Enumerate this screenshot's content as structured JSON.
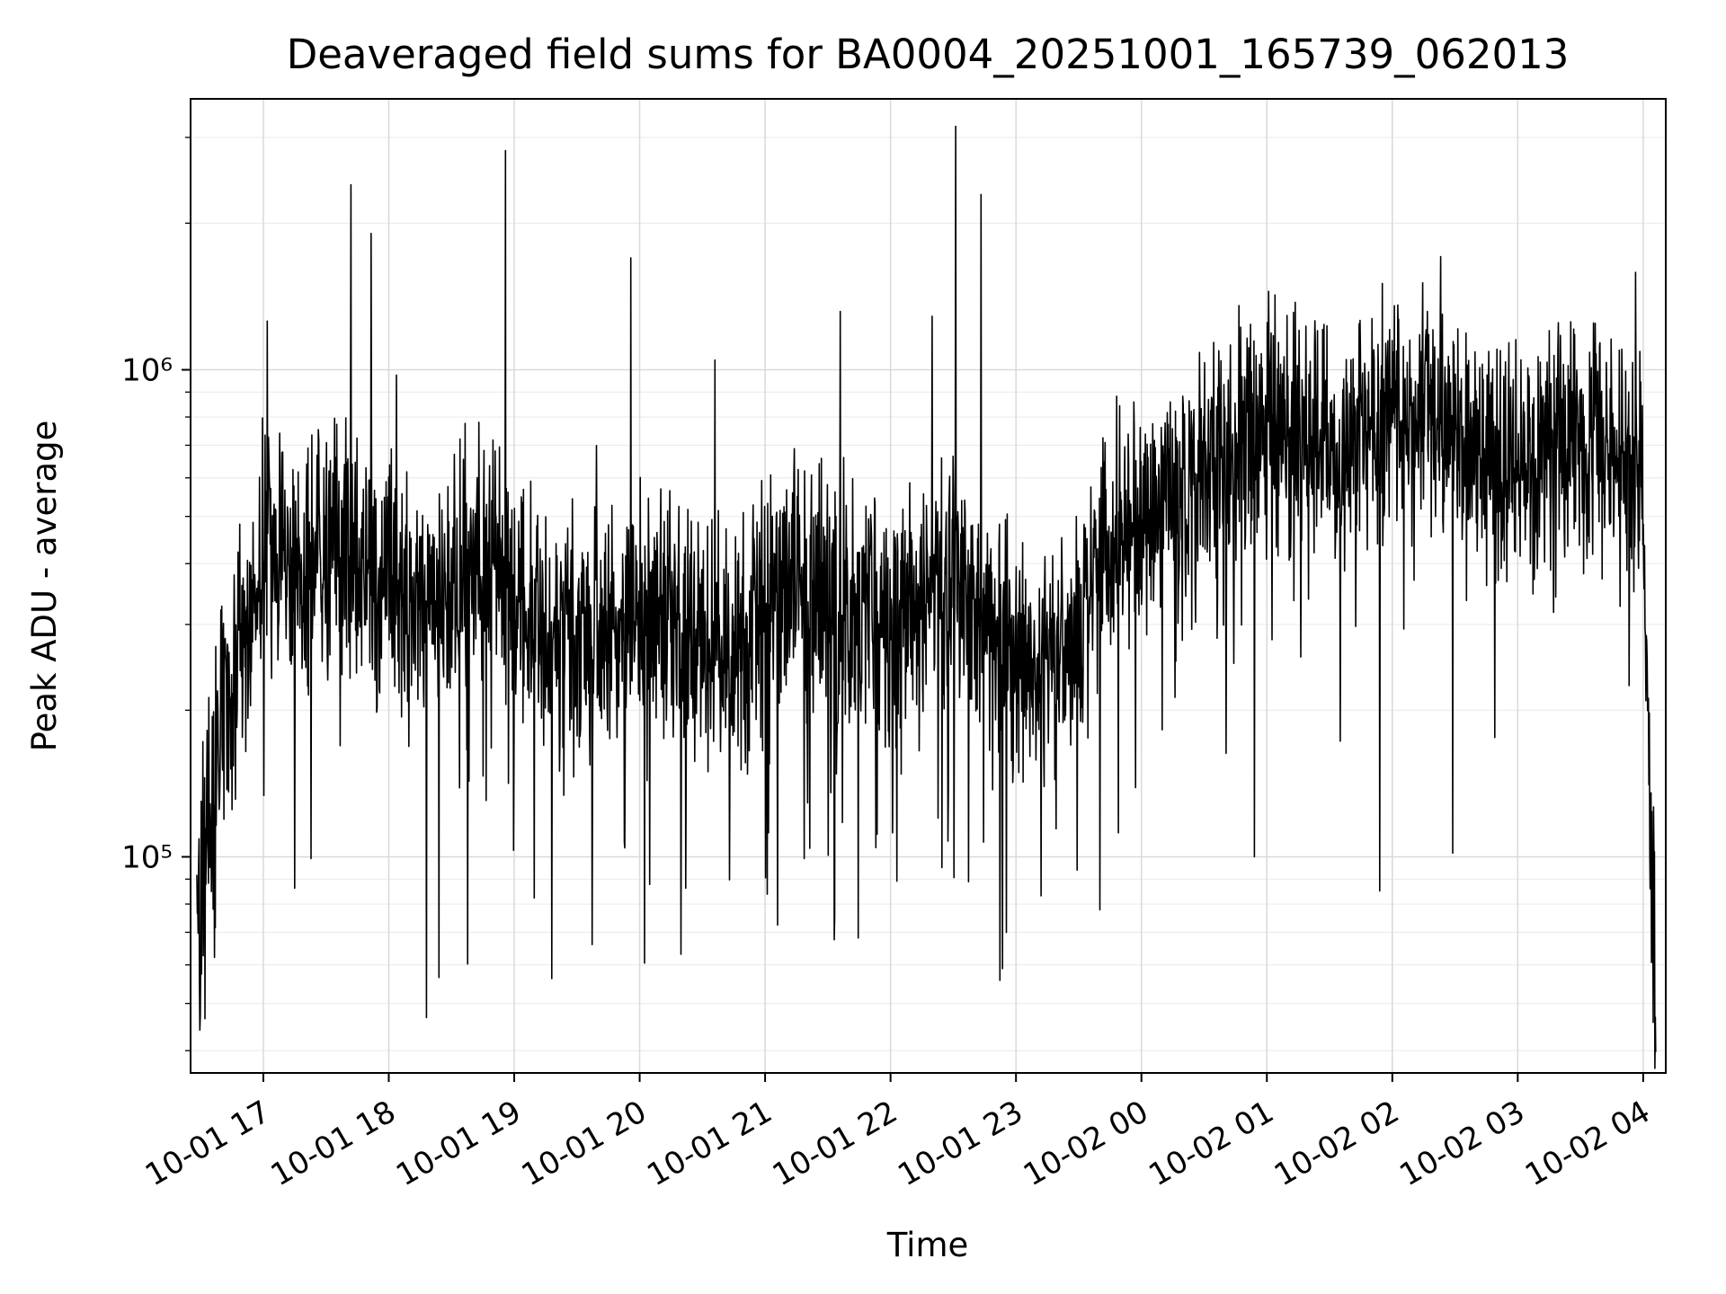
{
  "chart": {
    "title": "Deaveraged field sums for BA0004_20251001_165739_062013",
    "xlabel": "Time",
    "ylabel": "Peak ADU - average"
  },
  "chart_data": {
    "type": "line",
    "title": "Deaveraged field sums for BA0004_20251001_165739_062013",
    "xlabel": "Time",
    "ylabel": "Peak ADU - average",
    "legend": "none",
    "grid": "on (major and log-minor, light gray)",
    "series_color": "#000000",
    "y_scale": "log",
    "ylim": [
      36000,
      3600000
    ],
    "y_ticks": [
      {
        "value": 100000,
        "label": "10⁵"
      },
      {
        "value": 1000000,
        "label": "10⁶"
      }
    ],
    "xlim_hours": [
      16.42,
      28.18
    ],
    "x_tick_hours": [
      17,
      18,
      19,
      20,
      21,
      22,
      23,
      24,
      25,
      26,
      27,
      28
    ],
    "x_tick_labels": [
      "10-01 17",
      "10-01 18",
      "10-01 19",
      "10-01 20",
      "10-01 21",
      "10-01 22",
      "10-01 23",
      "10-02 00",
      "10-02 01",
      "10-02 02",
      "10-02 03",
      "10-02 04"
    ],
    "pattern_summary": "Dense noisy single black time series. Starts ~16:30 Oct-01 with a low scattered cluster (5e4-3e5 ADU), rises to a band oscillating roughly 2e5-9e5 (median ~3.5e5) until ~23:30, with occasional deep dips to ~5e4 and isolated spikes to 1.6e6-3.2e6 (tallest ~3.2e6 near 22:30). After ~00:00 Oct-02 the band shifts up (median ~7e5, peaks ~1.7e6) and stays high until ~04:00, then collapses sharply to ~5e4-1.3e5 at the end.",
    "signal_model": {
      "seed": 42,
      "n_points": 3400,
      "t_start": 16.47,
      "t_end": 28.1,
      "value_units": "log10(Peak ADU - average)",
      "segments": [
        {
          "t0": 16.47,
          "t1": 16.62,
          "m0": 4.95,
          "m1": 5.15,
          "amp": 0.4,
          "dipP": 0.1,
          "dipAmp": 0.35,
          "upP": 0.02,
          "upAmp": 0.2
        },
        {
          "t0": 16.62,
          "t1": 16.98,
          "m0": 5.3,
          "m1": 5.62,
          "amp": 0.3,
          "dipP": 0.03,
          "dipAmp": 0.45,
          "upP": 0.01,
          "upAmp": 0.25
        },
        {
          "t0": 16.98,
          "t1": 17.22,
          "m0": 5.68,
          "m1": 5.6,
          "amp": 0.28,
          "dipP": 0.03,
          "dipAmp": 0.5,
          "upP": 0.04,
          "upAmp": 0.22
        },
        {
          "t0": 17.22,
          "t1": 20.2,
          "m0": 5.56,
          "m1": 5.5,
          "amp": 0.3,
          "dipP": 0.04,
          "dipAmp": 0.6,
          "upP": 0.012,
          "upAmp": 0.3
        },
        {
          "t0": 20.2,
          "t1": 23.05,
          "m0": 5.5,
          "m1": 5.47,
          "amp": 0.3,
          "dipP": 0.045,
          "dipAmp": 0.6,
          "upP": 0.012,
          "upAmp": 0.3
        },
        {
          "t0": 23.05,
          "t1": 23.6,
          "m0": 5.44,
          "m1": 5.5,
          "amp": 0.28,
          "dipP": 0.04,
          "dipAmp": 0.55,
          "upP": 0.01,
          "upAmp": 0.25
        },
        {
          "t0": 23.6,
          "t1": 24.15,
          "m0": 5.55,
          "m1": 5.8,
          "amp": 0.28,
          "dipP": 0.03,
          "dipAmp": 0.55,
          "upP": 0.01,
          "upAmp": 0.2
        },
        {
          "t0": 24.15,
          "t1": 28.0,
          "m0": 5.82,
          "m1": 5.87,
          "amp": 0.3,
          "dipP": 0.022,
          "dipAmp": 0.6,
          "upP": 0.01,
          "upAmp": 0.12
        },
        {
          "t0": 28.0,
          "t1": 28.1,
          "m0": 5.6,
          "m1": 4.85,
          "amp": 0.32,
          "dipP": 0.08,
          "dipAmp": 0.3,
          "upP": 0.0,
          "upAmp": 0.0
        }
      ],
      "spikes": [
        {
          "t": 17.03,
          "v_log10": 6.1
        },
        {
          "t": 17.7,
          "v_log10": 6.38
        },
        {
          "t": 17.86,
          "v_log10": 6.28
        },
        {
          "t": 18.93,
          "v_log10": 6.45
        },
        {
          "t": 19.93,
          "v_log10": 6.23
        },
        {
          "t": 20.6,
          "v_log10": 6.02
        },
        {
          "t": 21.6,
          "v_log10": 6.12
        },
        {
          "t": 22.33,
          "v_log10": 6.11
        },
        {
          "t": 22.52,
          "v_log10": 6.5
        },
        {
          "t": 22.72,
          "v_log10": 6.36
        },
        {
          "t": 27.94,
          "v_log10": 6.2
        }
      ],
      "dips": [
        {
          "t": 18.3,
          "v_log10": 4.67
        },
        {
          "t": 18.63,
          "v_log10": 4.78
        },
        {
          "t": 19.3,
          "v_log10": 4.75
        },
        {
          "t": 19.62,
          "v_log10": 4.82
        },
        {
          "t": 20.33,
          "v_log10": 4.8
        },
        {
          "t": 21.1,
          "v_log10": 4.86
        },
        {
          "t": 21.55,
          "v_log10": 4.83
        },
        {
          "t": 22.05,
          "v_log10": 4.95
        },
        {
          "t": 23.2,
          "v_log10": 4.92
        },
        {
          "t": 24.9,
          "v_log10": 5.0
        },
        {
          "t": 25.9,
          "v_log10": 4.93
        },
        {
          "t": 28.1,
          "v_log10": 4.6
        }
      ]
    }
  }
}
